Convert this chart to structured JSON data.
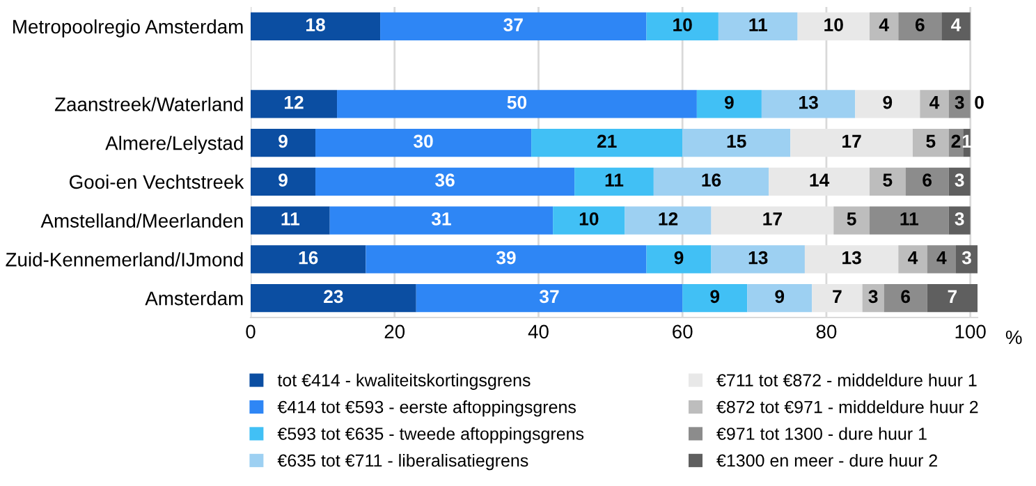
{
  "chart_data": {
    "type": "bar",
    "orientation": "horizontal",
    "stacked": true,
    "xlabel": "%",
    "categories": [
      "Metropoolregio Amsterdam",
      null,
      "Zaanstreek/Waterland",
      "Almere/Lelystad",
      "Gooi-en Vechtstreek",
      "Amstelland/Meerlanden",
      "Zuid-Kennemerland/IJmond",
      "Amsterdam"
    ],
    "series": [
      {
        "name": "tot €414 - kwaliteitskortingsgrens",
        "color": "#0b4ea2",
        "values": [
          18,
          null,
          12,
          9,
          9,
          11,
          16,
          23
        ]
      },
      {
        "name": "€414 tot €593 - eerste aftoppingsgrens",
        "color": "#2e86f5",
        "values": [
          37,
          null,
          50,
          30,
          36,
          31,
          39,
          37
        ]
      },
      {
        "name": "€593 tot €635 - tweede aftoppingsgrens",
        "color": "#41c0f5",
        "values": [
          10,
          null,
          9,
          21,
          11,
          10,
          9,
          9
        ]
      },
      {
        "name": "€635 tot €711 - liberalisatiegrens",
        "color": "#9dd0f2",
        "values": [
          11,
          null,
          13,
          15,
          16,
          12,
          13,
          9
        ]
      },
      {
        "name": "€711 tot €872 - middeldure huur 1",
        "color": "#e8e8e8",
        "values": [
          10,
          null,
          9,
          17,
          14,
          17,
          13,
          7
        ]
      },
      {
        "name": "€872 tot €971 - middeldure huur 2",
        "color": "#bdbdbd",
        "values": [
          4,
          null,
          4,
          5,
          5,
          5,
          4,
          3
        ]
      },
      {
        "name": "€971 tot 1300 - dure huur 1",
        "color": "#8c8c8c",
        "values": [
          6,
          null,
          3,
          2,
          6,
          11,
          4,
          6
        ]
      },
      {
        "name": "€1300 en meer - dure huur 2",
        "color": "#5f5f5f",
        "values": [
          4,
          null,
          0,
          1,
          3,
          3,
          3,
          7
        ]
      }
    ],
    "xlim": [
      0,
      101
    ],
    "xticks": [
      0,
      20,
      40,
      60,
      80,
      100
    ],
    "grid": "x",
    "data_labels": true,
    "legend": "bottom"
  }
}
